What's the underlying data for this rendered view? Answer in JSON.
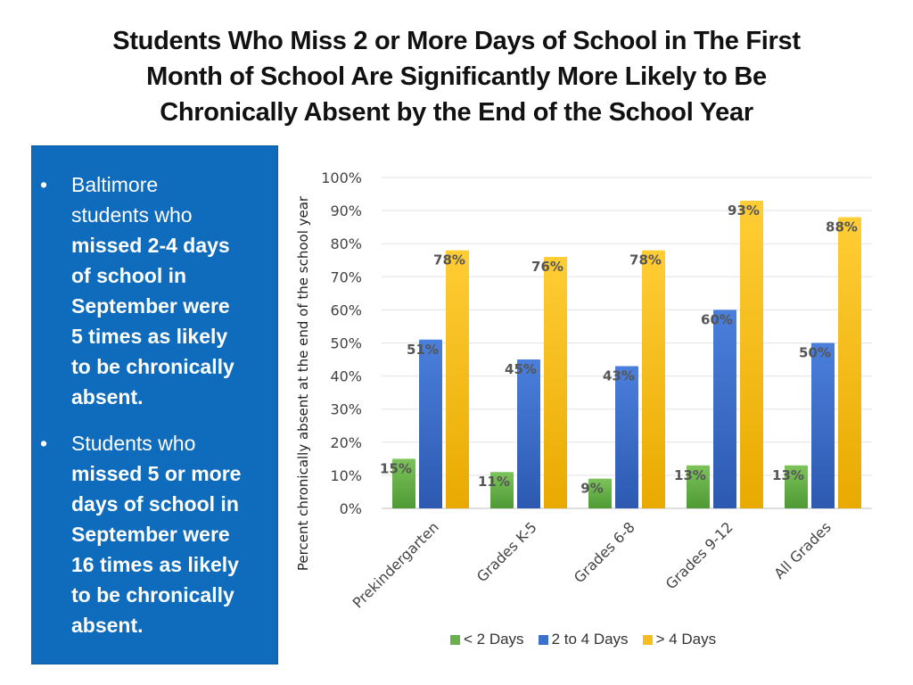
{
  "title": {
    "line1": "Students Who Miss 2 or More Days of School in The First",
    "line2": "Month of School Are Significantly More Likely to Be",
    "line3": "Chronically Absent by the End of the School Year"
  },
  "sidebar": {
    "bullets": [
      {
        "bullet": "•",
        "lines": [
          {
            "text": "Baltimore",
            "bold": false
          },
          {
            "text": "students who",
            "bold": false
          },
          {
            "text": "missed 2-4 days",
            "bold": true
          },
          {
            "text": "of school in",
            "bold": true
          },
          {
            "text": "September were",
            "bold": true
          },
          {
            "text": "5 times as likely",
            "bold": true
          },
          {
            "text": "to be chronically",
            "bold": true
          },
          {
            "text": "absent.",
            "bold": true
          }
        ]
      },
      {
        "bullet": "•",
        "lines": [
          {
            "text": "Students who",
            "bold": false
          },
          {
            "text": "missed 5 or more",
            "bold": true
          },
          {
            "text": "days of school in",
            "bold": true
          },
          {
            "text": "September were",
            "bold": true
          },
          {
            "text": "16 times as likely",
            "bold": true
          },
          {
            "text": "to be chronically",
            "bold": true
          },
          {
            "text": "absent.",
            "bold": true
          }
        ]
      }
    ]
  },
  "chart_data": {
    "type": "bar",
    "ylabel": "Percent chronically absent at the end of the school year",
    "xlabel": "",
    "ylim": [
      0,
      100
    ],
    "yticks": [
      "0%",
      "10%",
      "20%",
      "30%",
      "40%",
      "50%",
      "60%",
      "70%",
      "80%",
      "90%",
      "100%"
    ],
    "grid": true,
    "legend_position": "bottom",
    "categories": [
      "Prekindergarten",
      "Grades K-5",
      "Grades 6-8",
      "Grades 9-12",
      "All Grades"
    ],
    "series": [
      {
        "name": "< 2 Days",
        "color": "#6ab04c",
        "values": [
          15,
          11,
          9,
          13,
          13
        ],
        "labels": [
          "15%",
          "11%",
          "9%",
          "13%",
          "13%"
        ]
      },
      {
        "name": "2 to 4 Days",
        "color": "#3d6fcc",
        "values": [
          51,
          45,
          43,
          60,
          50
        ],
        "labels": [
          "51%",
          "45%",
          "43%",
          "60%",
          "50%"
        ]
      },
      {
        "name": "> 4 Days",
        "color": "#f5bd1f",
        "values": [
          78,
          76,
          78,
          93,
          88
        ],
        "labels": [
          "78%",
          "76%",
          "78%",
          "93%",
          "88%"
        ]
      }
    ]
  }
}
